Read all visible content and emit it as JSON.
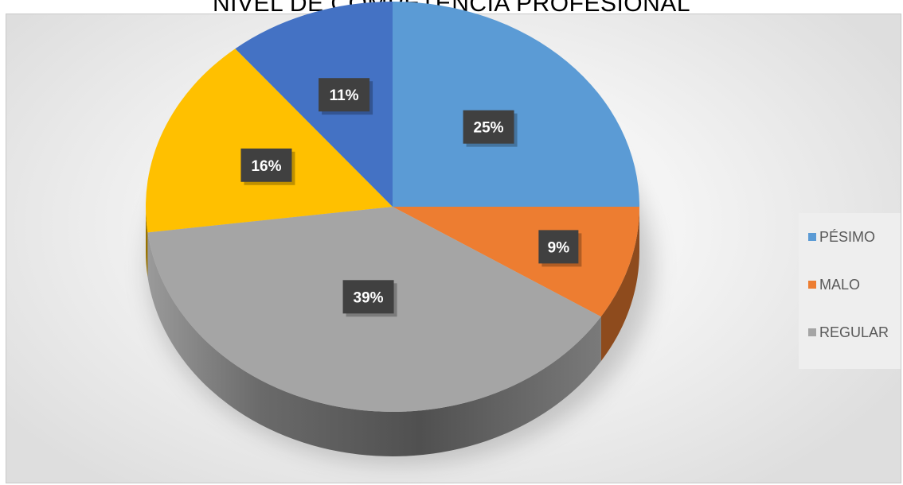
{
  "chart_data": {
    "type": "pie",
    "title": "NIVEL DE COMPETENCIA PROFESIONAL",
    "legend_position": "right",
    "slices": [
      {
        "label": "PÉSIMO",
        "value": 25,
        "display": "25%",
        "color": "#5b9bd5"
      },
      {
        "label": "MALO",
        "value": 9,
        "display": "9%",
        "color": "#ed7d31"
      },
      {
        "label": "REGULAR",
        "value": 39,
        "display": "39%",
        "color": "#a5a5a5"
      },
      {
        "label": "",
        "value": 16,
        "display": "16%",
        "color": "#ffc000"
      },
      {
        "label": "",
        "value": 11,
        "display": "11%",
        "color": "#4472c4"
      }
    ]
  }
}
